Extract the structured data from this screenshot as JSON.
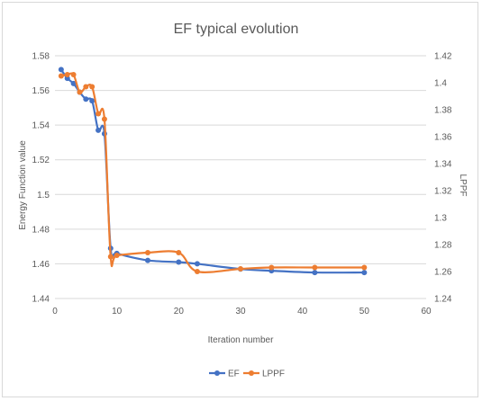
{
  "chart_data": {
    "type": "line",
    "title": "EF typical evolution",
    "xlabel": "Iteration number",
    "ylabel_left": "Energy Function value",
    "ylabel_right": "LPPF",
    "xlim": [
      0,
      60
    ],
    "x_ticks": [
      0,
      10,
      20,
      30,
      40,
      50,
      60
    ],
    "ylim_left": [
      1.44,
      1.58
    ],
    "y_ticks_left": [
      "1.44",
      "1.46",
      "1.48",
      "1.5",
      "1.52",
      "1.54",
      "1.56",
      "1.58"
    ],
    "ylim_right": [
      1.24,
      1.42
    ],
    "y_ticks_right": [
      "1.24",
      "1.26",
      "1.28",
      "1.3",
      "1.32",
      "1.34",
      "1.36",
      "1.38",
      "1.4",
      "1.42"
    ],
    "grid": "horizontal",
    "legend_position": "bottom",
    "series": [
      {
        "name": "EF",
        "axis": "left",
        "color": "#4472c4",
        "x": [
          1,
          2,
          3,
          4,
          5,
          6,
          7,
          8,
          9,
          10,
          15,
          20,
          23,
          30,
          35,
          42,
          50
        ],
        "y": [
          1.572,
          1.567,
          1.564,
          1.559,
          1.555,
          1.554,
          1.537,
          1.535,
          1.469,
          1.466,
          1.462,
          1.461,
          1.46,
          1.457,
          1.456,
          1.455,
          1.455
        ]
      },
      {
        "name": "LPPF",
        "axis": "right",
        "color": "#ed7d31",
        "x": [
          1,
          2,
          3,
          4,
          5,
          6,
          7,
          8,
          9,
          10,
          15,
          20,
          23,
          30,
          35,
          42,
          50
        ],
        "y": [
          1.405,
          1.406,
          1.406,
          1.393,
          1.397,
          1.397,
          1.377,
          1.373,
          1.271,
          1.272,
          1.274,
          1.274,
          1.26,
          1.262,
          1.263,
          1.263,
          1.263
        ]
      }
    ]
  }
}
